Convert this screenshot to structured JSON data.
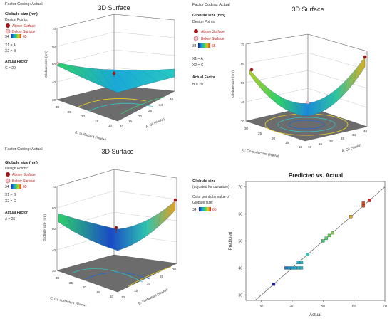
{
  "panel_a": {
    "factor_coding": "Factor Coding: Actual",
    "title": "3D Surface",
    "response_label": "Globule size (nm)",
    "design_points_label": "Design Points:",
    "above_label": "Above Surface",
    "below_label": "Below Surface",
    "scale_min": "34",
    "scale_max": "65",
    "x1": "X1 = A",
    "x2": "X2 = B",
    "actual_factor_label": "Actual Factor",
    "actual_factor_value": "C = 20",
    "z_axis_label": "Globule size (nm)",
    "z_ticks": [
      "30",
      "40",
      "50",
      "60",
      "70"
    ],
    "left_axis_label": "B: Surfactant (%w/w)",
    "left_ticks": [
      "30",
      "25",
      "20",
      "15",
      "10"
    ],
    "right_axis_label": "A: Oil (%w/w)",
    "right_ticks": [
      "10",
      "16",
      "22",
      "28",
      "34",
      "40"
    ]
  },
  "panel_b": {
    "factor_coding": "Factor Coding: Actual",
    "title": "3D Surface",
    "response_label": "Globule size (nm)",
    "design_points_label": "Design Points:",
    "above_label": "Above Surface",
    "below_label": "Below Surface",
    "scale_min": "34",
    "scale_max": "65",
    "x1": "X1 = A",
    "x2": "X2 = C",
    "actual_factor_label": "Actual Factor",
    "actual_factor_value": "B = 20",
    "z_axis_label": "Globule size (nm)",
    "z_ticks": [
      "30",
      "40",
      "50",
      "60",
      "70"
    ],
    "left_axis_label": "C: Co-surfactant (%w/w)",
    "left_ticks": [
      "30",
      "25",
      "20",
      "15",
      "10"
    ],
    "right_axis_label": "A: Oil (%w/w)",
    "right_ticks": [
      "10",
      "16",
      "22",
      "28",
      "34",
      "40"
    ]
  },
  "panel_c": {
    "factor_coding": "Factor Coding: Actual",
    "title": "3D Surface",
    "response_label": "Globule size (nm)",
    "design_points_label": "Design Points:",
    "above_label": "Above Surface",
    "below_label": "Below Surface",
    "scale_min": "34",
    "scale_max": "65",
    "x1": "X1 = B",
    "x2": "X2 = C",
    "actual_factor_label": "Actual Factor",
    "actual_factor_value": "A = 25",
    "z_axis_label": "Globule size (nm)",
    "z_ticks": [
      "30",
      "40",
      "50",
      "60",
      "70"
    ],
    "left_axis_label": "C: Co-surfactant (%w/w)",
    "left_ticks": [
      "30",
      "25",
      "20",
      "15",
      "10"
    ],
    "right_axis_label": "B: Surfactant (%w/w)",
    "right_ticks": [
      "10",
      "15",
      "20",
      "25",
      "30"
    ]
  },
  "panel_d_legend": {
    "response_label": "Globule size",
    "adjusted_note": "(adjusted for curvature)",
    "color_note_1": "Color points by value of",
    "color_note_2": "Globule size:",
    "scale_min": "34",
    "scale_max": "65"
  },
  "chart_data": {
    "type": "scatter",
    "title": "Predicted vs. Actual",
    "xlabel": "Actual",
    "ylabel": "Predicted",
    "xlim": [
      25,
      70
    ],
    "ylim": [
      28,
      72
    ],
    "x_ticks": [
      "30",
      "40",
      "50",
      "60",
      "70"
    ],
    "y_ticks": [
      "30",
      "40",
      "50",
      "60",
      "70"
    ],
    "grid": false,
    "reference_line": "y = x",
    "points": [
      {
        "x": 34,
        "y": 34
      },
      {
        "x": 38,
        "y": 40
      },
      {
        "x": 39,
        "y": 40
      },
      {
        "x": 40,
        "y": 40
      },
      {
        "x": 41,
        "y": 40
      },
      {
        "x": 42,
        "y": 40
      },
      {
        "x": 43,
        "y": 40
      },
      {
        "x": 42,
        "y": 42
      },
      {
        "x": 43,
        "y": 42
      },
      {
        "x": 45,
        "y": 45
      },
      {
        "x": 50,
        "y": 50
      },
      {
        "x": 51,
        "y": 51
      },
      {
        "x": 52,
        "y": 52
      },
      {
        "x": 53,
        "y": 53
      },
      {
        "x": 59,
        "y": 59
      },
      {
        "x": 63,
        "y": 63
      },
      {
        "x": 63,
        "y": 64
      },
      {
        "x": 65,
        "y": 65
      }
    ],
    "colors": {
      "low": "#1a1aa8",
      "mid": "#2ec4c4",
      "high": "#e0a020",
      "max": "#c0302c"
    }
  }
}
